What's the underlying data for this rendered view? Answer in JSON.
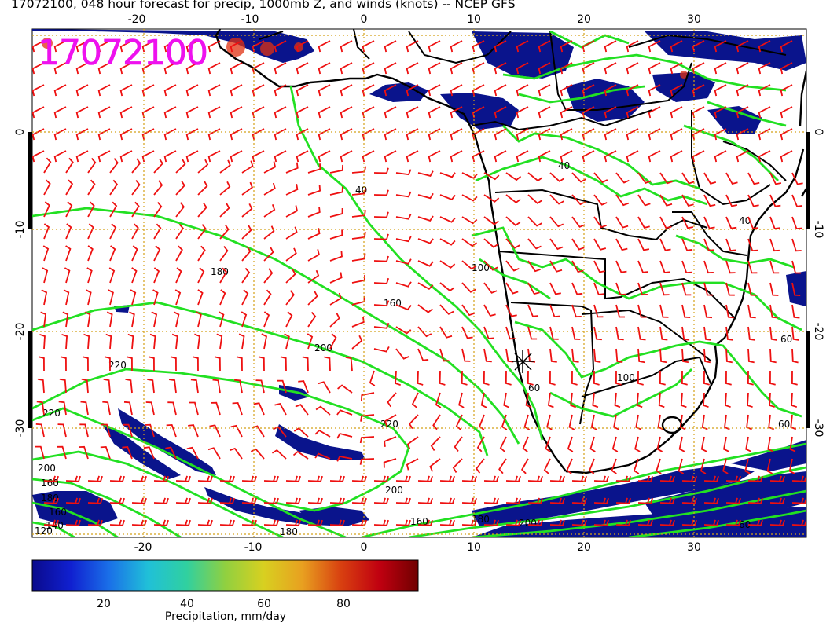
{
  "title": "17072100, 048 hour forecast for precip, 1000mb Z, and winds (knots) -- NCEP GFS",
  "stamp": "17072100",
  "lon_ticks": [
    "-20",
    "-10",
    "0",
    "10",
    "20",
    "30"
  ],
  "lat_ticks": [
    "0",
    "-10",
    "-20",
    "-30"
  ],
  "contour_labels": [
    "40",
    "160",
    "180",
    "200",
    "220",
    "220",
    "220",
    "200",
    "160",
    "180",
    "200",
    "160",
    "180",
    "160",
    "140",
    "120",
    "60",
    "60",
    "60",
    "100",
    "40",
    "60",
    "100",
    "40",
    "200",
    "180"
  ],
  "colorbar": {
    "label": "Precipitation, mm/day",
    "ticks": [
      "20",
      "40",
      "60",
      "80"
    ],
    "colors": [
      "#0a0a8c",
      "#1020d0",
      "#1a70e8",
      "#20c0d8",
      "#30d0a0",
      "#90d040",
      "#d8d020",
      "#e8a020",
      "#d84010",
      "#c00010",
      "#700000"
    ]
  },
  "map_colors": {
    "precip": "#0a148c",
    "precip_high": "#e03010",
    "contour": "#20e020",
    "wind": "#ee1010",
    "grid": "#d4a017",
    "coast": "#000000"
  }
}
